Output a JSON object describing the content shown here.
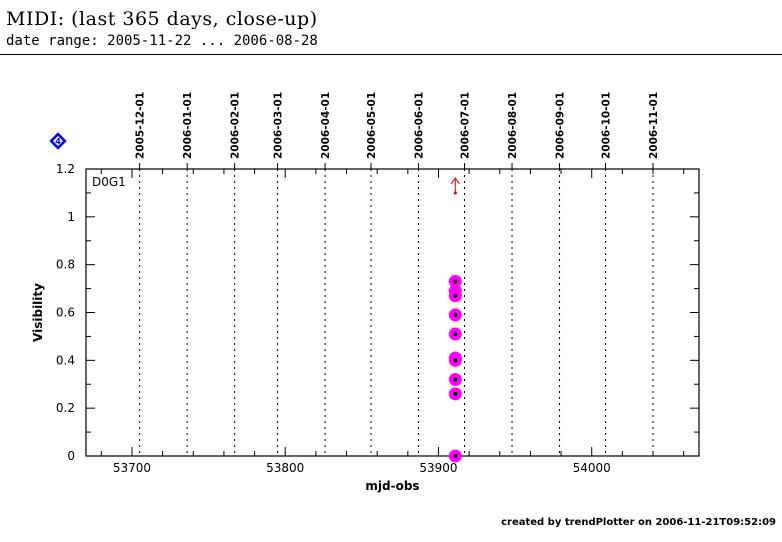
{
  "header": {
    "title": "MIDI: (last 365 days, close-up)",
    "subtitle": "date range: 2005-11-22 ... 2006-08-28"
  },
  "footer": {
    "text": "created by trendPlotter on 2006-11-21T09:52:09"
  },
  "chart_data": {
    "type": "scatter",
    "title": "",
    "panel_label": "D0G1",
    "badge": "4",
    "xlabel": "mjd-obs",
    "ylabel": "Visibility",
    "xlim": [
      53670,
      54070
    ],
    "ylim": [
      0,
      1.2
    ],
    "x_ticks": [
      53700,
      53800,
      53900,
      54000
    ],
    "x_tick_labels": [
      "53700",
      "53800",
      "53900",
      "54000"
    ],
    "y_ticks": [
      0,
      0.2,
      0.4,
      0.6,
      0.8,
      1,
      1.2
    ],
    "y_tick_labels": [
      "0",
      "0.2",
      "0.4",
      "0.6",
      "0.8",
      "1",
      "1.2"
    ],
    "date_markers": [
      {
        "label": "2005-12-01",
        "mjd": 53705
      },
      {
        "label": "2006-01-01",
        "mjd": 53736
      },
      {
        "label": "2006-02-01",
        "mjd": 53767
      },
      {
        "label": "2006-03-01",
        "mjd": 53795
      },
      {
        "label": "2006-04-01",
        "mjd": 53826
      },
      {
        "label": "2006-05-01",
        "mjd": 53856
      },
      {
        "label": "2006-06-01",
        "mjd": 53887
      },
      {
        "label": "2006-07-01",
        "mjd": 53917
      },
      {
        "label": "2006-08-01",
        "mjd": 53948
      },
      {
        "label": "2006-09-01",
        "mjd": 53979
      },
      {
        "label": "2006-10-01",
        "mjd": 54009
      },
      {
        "label": "2006-11-01",
        "mjd": 54040
      }
    ],
    "grid": "vertical dotted lines at month starts",
    "series": [
      {
        "marker": "magenta circle with black dot",
        "color": "#ff00ff",
        "points": [
          {
            "x": 53911,
            "y": 0.73
          },
          {
            "x": 53911,
            "y": 0.69
          },
          {
            "x": 53911,
            "y": 0.67
          },
          {
            "x": 53911,
            "y": 0.59
          },
          {
            "x": 53911,
            "y": 0.51
          },
          {
            "x": 53911,
            "y": 0.41
          },
          {
            "x": 53911,
            "y": 0.4
          },
          {
            "x": 53911,
            "y": 0.32
          },
          {
            "x": 53911,
            "y": 0.26
          },
          {
            "x": 53911,
            "y": 0.0
          }
        ]
      }
    ],
    "out_of_range": [
      {
        "x": 53911,
        "y": 1.1,
        "direction": "up",
        "color": "#ff0000"
      }
    ],
    "colors": {
      "points": "#ff00ff",
      "arrow": "#ff0000",
      "badge": "#0000ff"
    }
  }
}
